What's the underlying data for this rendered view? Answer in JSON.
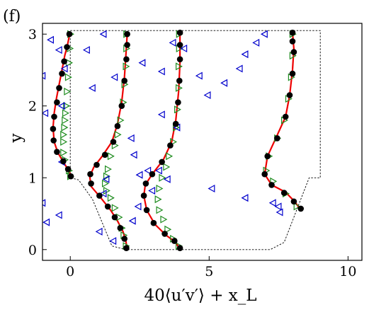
{
  "panel_label": "(f)",
  "chart_data": {
    "type": "scatter",
    "xlabel": "40⟨u′v′⟩ + x_L",
    "ylabel": "y",
    "xlim": [
      -1,
      10.5
    ],
    "ylim": [
      -0.15,
      3.15
    ],
    "xticks": [
      0,
      5,
      10
    ],
    "yticks": [
      0,
      1,
      2,
      3
    ],
    "grid": false,
    "geometry_outline": [
      [
        0,
        3.05
      ],
      [
        9,
        3.05
      ],
      [
        9,
        1
      ],
      [
        8.6,
        1
      ],
      [
        8.4,
        0.8
      ],
      [
        7.7,
        0.1
      ],
      [
        7.2,
        0
      ],
      [
        2,
        0
      ],
      [
        1.5,
        0.05
      ],
      [
        0.8,
        0.7
      ],
      [
        0.3,
        0.97
      ],
      [
        0,
        1
      ],
      [
        0,
        3.05
      ]
    ],
    "series": [
      {
        "style": "red-line",
        "color": "#ee0000",
        "profiles": [
          [
            [
              0.05,
              1.0
            ],
            [
              -0.05,
              1.1
            ],
            [
              -0.22,
              1.2
            ],
            [
              -0.45,
              1.35
            ],
            [
              -0.58,
              1.5
            ],
            [
              -0.62,
              1.7
            ],
            [
              -0.58,
              1.9
            ],
            [
              -0.5,
              2.1
            ],
            [
              -0.4,
              2.3
            ],
            [
              -0.3,
              2.5
            ],
            [
              -0.2,
              2.7
            ],
            [
              -0.1,
              2.85
            ],
            [
              -0.02,
              3.0
            ]
          ],
          [
            [
              2.05,
              0.0
            ],
            [
              2.0,
              0.12
            ],
            [
              1.9,
              0.25
            ],
            [
              1.7,
              0.4
            ],
            [
              1.45,
              0.55
            ],
            [
              1.1,
              0.72
            ],
            [
              0.75,
              0.88
            ],
            [
              0.7,
              1.02
            ],
            [
              0.85,
              1.15
            ],
            [
              1.15,
              1.3
            ],
            [
              1.5,
              1.5
            ],
            [
              1.7,
              1.75
            ],
            [
              1.85,
              2.05
            ],
            [
              1.95,
              2.4
            ],
            [
              2.0,
              2.7
            ],
            [
              2.05,
              3.0
            ]
          ],
          [
            [
              3.95,
              0.0
            ],
            [
              3.8,
              0.1
            ],
            [
              3.45,
              0.2
            ],
            [
              3.05,
              0.35
            ],
            [
              2.75,
              0.55
            ],
            [
              2.65,
              0.75
            ],
            [
              2.7,
              0.9
            ],
            [
              2.95,
              1.05
            ],
            [
              3.35,
              1.25
            ],
            [
              3.65,
              1.5
            ],
            [
              3.8,
              1.8
            ],
            [
              3.9,
              2.2
            ],
            [
              3.95,
              2.6
            ],
            [
              3.95,
              3.0
            ]
          ],
          [
            [
              8.25,
              0.58
            ],
            [
              8.05,
              0.68
            ],
            [
              7.75,
              0.8
            ],
            [
              7.25,
              0.9
            ],
            [
              7.0,
              1.05
            ],
            [
              7.1,
              1.3
            ],
            [
              7.4,
              1.55
            ],
            [
              7.75,
              1.85
            ],
            [
              7.9,
              2.15
            ],
            [
              8.0,
              2.5
            ],
            [
              8.05,
              2.8
            ],
            [
              8.0,
              3.02
            ]
          ]
        ]
      },
      {
        "style": "black-dots",
        "color": "#000000",
        "profiles": [
          [
            [
              0.02,
              1.02
            ],
            [
              -0.08,
              1.12
            ],
            [
              -0.25,
              1.23
            ],
            [
              -0.48,
              1.36
            ],
            [
              -0.6,
              1.52
            ],
            [
              -0.62,
              1.68
            ],
            [
              -0.58,
              1.85
            ],
            [
              -0.48,
              2.05
            ],
            [
              -0.4,
              2.25
            ],
            [
              -0.3,
              2.45
            ],
            [
              -0.22,
              2.62
            ],
            [
              -0.12,
              2.82
            ],
            [
              -0.03,
              3.0
            ]
          ],
          [
            [
              2.02,
              0.02
            ],
            [
              1.95,
              0.15
            ],
            [
              1.8,
              0.3
            ],
            [
              1.6,
              0.45
            ],
            [
              1.35,
              0.6
            ],
            [
              1.05,
              0.75
            ],
            [
              0.75,
              0.92
            ],
            [
              0.72,
              1.05
            ],
            [
              0.95,
              1.18
            ],
            [
              1.25,
              1.32
            ],
            [
              1.55,
              1.5
            ],
            [
              1.7,
              1.72
            ],
            [
              1.85,
              2.0
            ],
            [
              1.95,
              2.35
            ],
            [
              2.02,
              2.65
            ],
            [
              2.05,
              2.85
            ],
            [
              2.05,
              3.0
            ]
          ],
          [
            [
              3.95,
              0.02
            ],
            [
              3.75,
              0.12
            ],
            [
              3.4,
              0.22
            ],
            [
              3.0,
              0.37
            ],
            [
              2.75,
              0.55
            ],
            [
              2.65,
              0.75
            ],
            [
              2.72,
              0.92
            ],
            [
              2.95,
              1.05
            ],
            [
              3.3,
              1.22
            ],
            [
              3.6,
              1.45
            ],
            [
              3.8,
              1.75
            ],
            [
              3.88,
              2.05
            ],
            [
              3.93,
              2.35
            ],
            [
              3.95,
              2.65
            ],
            [
              3.95,
              2.85
            ],
            [
              3.95,
              3.02
            ]
          ],
          [
            [
              8.3,
              0.57
            ],
            [
              8.05,
              0.67
            ],
            [
              7.7,
              0.79
            ],
            [
              7.25,
              0.9
            ],
            [
              7.0,
              1.05
            ],
            [
              7.1,
              1.3
            ],
            [
              7.45,
              1.55
            ],
            [
              7.75,
              1.85
            ],
            [
              7.9,
              2.15
            ],
            [
              8.0,
              2.45
            ],
            [
              8.05,
              2.75
            ],
            [
              8.0,
              2.9
            ],
            [
              8.0,
              3.02
            ]
          ]
        ]
      },
      {
        "style": "green-right-triangles",
        "color": "#1e8c1e",
        "points": [
          [
            0.0,
            1.02
          ],
          [
            -0.05,
            1.1
          ],
          [
            -0.2,
            1.25
          ],
          [
            -0.25,
            1.35
          ],
          [
            -0.25,
            1.5
          ],
          [
            -0.25,
            1.6
          ],
          [
            -0.22,
            1.7
          ],
          [
            -0.2,
            1.8
          ],
          [
            -0.18,
            1.9
          ],
          [
            -0.15,
            2.0
          ],
          [
            -0.12,
            2.2
          ],
          [
            -0.08,
            2.4
          ],
          [
            -0.05,
            2.6
          ],
          [
            -0.02,
            2.8
          ],
          [
            0.0,
            3.0
          ],
          [
            2.0,
            0.05
          ],
          [
            1.92,
            0.2
          ],
          [
            1.85,
            0.3
          ],
          [
            1.75,
            0.45
          ],
          [
            1.6,
            0.58
          ],
          [
            1.45,
            0.72
          ],
          [
            1.3,
            0.82
          ],
          [
            1.25,
            0.92
          ],
          [
            1.3,
            1.02
          ],
          [
            1.35,
            1.12
          ],
          [
            1.45,
            1.3
          ],
          [
            1.6,
            1.45
          ],
          [
            1.7,
            1.6
          ],
          [
            1.8,
            1.8
          ],
          [
            1.9,
            2.05
          ],
          [
            1.95,
            2.3
          ],
          [
            2.0,
            2.55
          ],
          [
            2.02,
            2.8
          ],
          [
            2.02,
            3.0
          ],
          [
            3.9,
            0.05
          ],
          [
            3.7,
            0.15
          ],
          [
            3.5,
            0.28
          ],
          [
            3.35,
            0.42
          ],
          [
            3.2,
            0.55
          ],
          [
            3.15,
            0.7
          ],
          [
            3.2,
            0.85
          ],
          [
            3.3,
            1.0
          ],
          [
            3.45,
            1.15
          ],
          [
            3.55,
            1.3
          ],
          [
            3.7,
            1.5
          ],
          [
            3.8,
            1.7
          ],
          [
            3.85,
            1.95
          ],
          [
            3.9,
            2.25
          ],
          [
            3.9,
            2.55
          ],
          [
            3.92,
            2.8
          ],
          [
            3.92,
            3.0
          ],
          [
            8.15,
            0.6
          ],
          [
            7.75,
            0.78
          ],
          [
            7.3,
            0.95
          ],
          [
            7.05,
            1.1
          ],
          [
            7.15,
            1.3
          ],
          [
            7.45,
            1.55
          ],
          [
            7.7,
            1.8
          ],
          [
            7.85,
            2.1
          ],
          [
            7.95,
            2.4
          ],
          [
            8.0,
            2.7
          ],
          [
            8.0,
            3.0
          ]
        ]
      },
      {
        "style": "blue-left-triangles",
        "color": "#0000cc",
        "points": [
          [
            -1.0,
            2.42
          ],
          [
            -0.7,
            2.92
          ],
          [
            -0.9,
            1.9
          ],
          [
            -0.85,
            0.38
          ],
          [
            -0.4,
            0.48
          ],
          [
            -0.3,
            2.0
          ],
          [
            -0.4,
            2.78
          ],
          [
            -0.2,
            2.52
          ],
          [
            -0.3,
            1.22
          ],
          [
            0.8,
            2.25
          ],
          [
            0.6,
            2.78
          ],
          [
            1.2,
            0.78
          ],
          [
            1.3,
            0.98
          ],
          [
            1.05,
            0.25
          ],
          [
            1.55,
            0.12
          ],
          [
            1.2,
            3.0
          ],
          [
            1.6,
            2.4
          ],
          [
            2.2,
            1.55
          ],
          [
            2.3,
            1.32
          ],
          [
            2.5,
            1.04
          ],
          [
            2.45,
            0.6
          ],
          [
            2.25,
            0.4
          ],
          [
            2.6,
            2.6
          ],
          [
            2.8,
            1.1
          ],
          [
            2.95,
            0.82
          ],
          [
            3.3,
            2.48
          ],
          [
            3.3,
            1.88
          ],
          [
            3.2,
            1.1
          ],
          [
            3.7,
            2.88
          ],
          [
            3.85,
            1.7
          ],
          [
            4.1,
            2.8
          ],
          [
            4.65,
            2.42
          ],
          [
            4.95,
            2.15
          ],
          [
            5.55,
            2.32
          ],
          [
            6.1,
            2.52
          ],
          [
            6.3,
            2.72
          ],
          [
            6.7,
            2.88
          ],
          [
            7.0,
            3.0
          ],
          [
            3.5,
            0.98
          ],
          [
            5.1,
            0.85
          ],
          [
            6.3,
            0.72
          ],
          [
            7.3,
            0.65
          ],
          [
            7.5,
            0.6
          ],
          [
            7.55,
            0.52
          ],
          [
            -1.0,
            0.65
          ]
        ]
      }
    ]
  }
}
